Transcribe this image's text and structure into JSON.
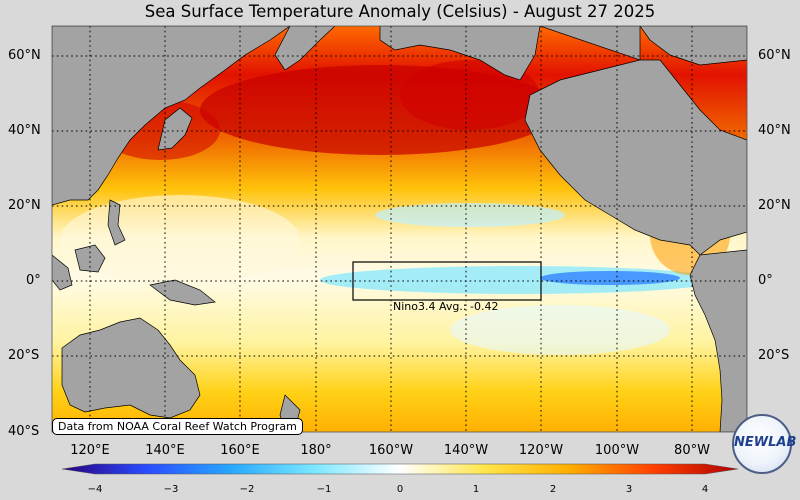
{
  "title": "Sea Surface Temperature Anomaly (Celsius) - August 27 2025",
  "map": {
    "lat_labels": [
      "60°N",
      "40°N",
      "20°N",
      "0°",
      "20°S",
      "40°S"
    ],
    "lon_labels": [
      "120°E",
      "140°E",
      "160°E",
      "180°",
      "160°W",
      "140°W",
      "120°W",
      "100°W",
      "80°W"
    ],
    "nino_box_label": "Nino3.4 Avg.: -0.42",
    "credit": "Data from NOAA Coral Reef Watch Program",
    "land_color": "#a3a3a3",
    "ocean_warm_colors": [
      "#ffffff",
      "#fff1a8",
      "#ffd21a",
      "#ff9a00",
      "#ff4a00",
      "#d60000"
    ],
    "ocean_cool_colors": [
      "#c6f1ff",
      "#5fd2ff",
      "#2a8cff"
    ]
  },
  "colorbar": {
    "ticks": [
      "−4",
      "−3",
      "−2",
      "−1",
      "0",
      "1",
      "2",
      "3",
      "4"
    ],
    "colors": [
      "#2a0080",
      "#2a4cff",
      "#28a8ff",
      "#7de8ff",
      "#ffffff",
      "#ffe64a",
      "#ffae00",
      "#ff4000",
      "#b00000"
    ]
  },
  "logo": {
    "text": "NEWLAB"
  }
}
